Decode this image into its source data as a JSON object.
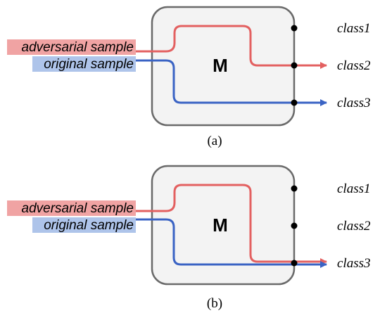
{
  "colors": {
    "adversarial": "#e36060",
    "original": "#3a63c4",
    "adversarial_label_bg": "#f0a3a3",
    "original_label_bg": "#aec4ea",
    "box_fill": "#f3f3f3",
    "box_stroke": "#6a6a6a",
    "dot": "#000000"
  },
  "panels": [
    {
      "caption": "(a)",
      "model_label": "M",
      "adversarial_label": "adversarial sample",
      "original_label": "original sample",
      "classes": [
        "class1",
        "class2",
        "class3"
      ]
    },
    {
      "caption": "(b)",
      "model_label": "M",
      "adversarial_label": "adversarial sample",
      "original_label": "original sample",
      "classes": [
        "class1",
        "class2",
        "class3"
      ]
    }
  ]
}
